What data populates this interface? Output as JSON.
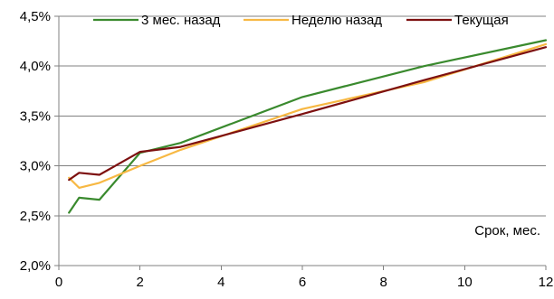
{
  "chart_data": {
    "type": "line",
    "annotation": "Срок, мес.",
    "xlim": [
      0,
      12
    ],
    "ylim": [
      2.0,
      4.5
    ],
    "x_ticks": [
      0,
      2,
      4,
      6,
      8,
      10,
      12
    ],
    "x_tick_labels": [
      "0",
      "2",
      "4",
      "6",
      "8",
      "10",
      "12"
    ],
    "y_ticks": [
      2.0,
      2.5,
      3.0,
      3.5,
      4.0,
      4.5
    ],
    "y_tick_labels": [
      "2,0%",
      "2,5%",
      "3,0%",
      "3,5%",
      "4,0%",
      "4,5%"
    ],
    "grid": true,
    "legend_position": "top",
    "series": [
      {
        "name": "3 мес. назад",
        "color": "#3a8a2e",
        "x": [
          0.25,
          0.5,
          1,
          2,
          3,
          6,
          9,
          12
        ],
        "y": [
          2.53,
          2.68,
          2.66,
          3.13,
          3.23,
          3.69,
          4.0,
          4.26
        ]
      },
      {
        "name": "Неделю назад",
        "color": "#f7b843",
        "x": [
          0.25,
          0.5,
          1,
          2,
          3,
          6,
          9,
          12
        ],
        "y": [
          2.88,
          2.78,
          2.83,
          3.0,
          3.16,
          3.57,
          3.84,
          4.22
        ]
      },
      {
        "name": "Текущая",
        "color": "#7d1010",
        "x": [
          0.25,
          0.5,
          1,
          2,
          3,
          6,
          9,
          12
        ],
        "y": [
          2.86,
          2.93,
          2.91,
          3.14,
          3.19,
          3.52,
          3.86,
          4.19
        ]
      }
    ]
  }
}
